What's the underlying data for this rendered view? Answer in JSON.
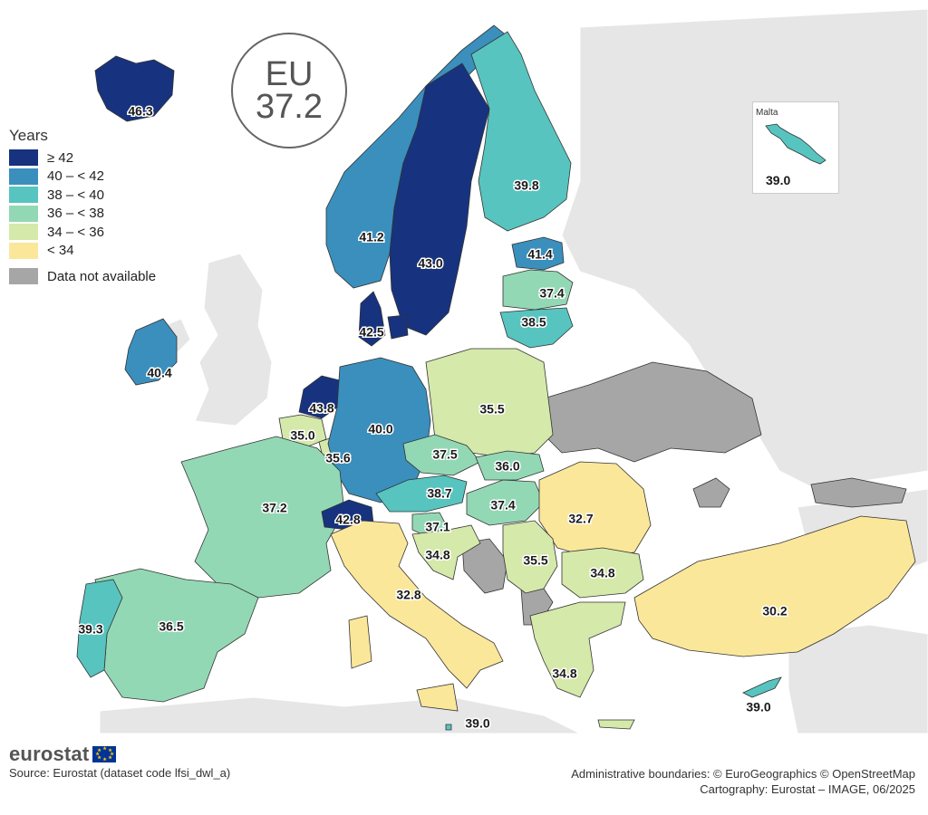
{
  "map": {
    "eu_badge": {
      "label": "EU",
      "value": "37.2"
    },
    "legend": {
      "title": "Years",
      "classes": [
        {
          "label": "≥ 42",
          "color": "#17337f"
        },
        {
          "label": "40 – < 42",
          "color": "#3a8fbd"
        },
        {
          "label": "38 – < 40",
          "color": "#57c4bf"
        },
        {
          "label": "36 – < 38",
          "color": "#93d8b4"
        },
        {
          "label": "34 – < 36",
          "color": "#d5e9aa"
        },
        {
          "label": "< 34",
          "color": "#fbe79a"
        }
      ],
      "not_available": {
        "label": "Data not available",
        "color": "#a6a6a6"
      }
    },
    "background_land_color": "#e6e6e6",
    "values": [
      {
        "region": "iceland",
        "value": "46.3"
      },
      {
        "region": "norway",
        "value": "41.2"
      },
      {
        "region": "sweden",
        "value": "43.0"
      },
      {
        "region": "finland",
        "value": "39.8"
      },
      {
        "region": "estonia",
        "value": "41.4"
      },
      {
        "region": "latvia",
        "value": "37.4"
      },
      {
        "region": "lithuania",
        "value": "38.5"
      },
      {
        "region": "denmark",
        "value": "42.5"
      },
      {
        "region": "ireland",
        "value": "40.4"
      },
      {
        "region": "netherlands",
        "value": "43.8"
      },
      {
        "region": "belgium",
        "value": "35.0"
      },
      {
        "region": "luxembourg",
        "value": "35.6"
      },
      {
        "region": "germany",
        "value": "40.0"
      },
      {
        "region": "poland",
        "value": "35.5"
      },
      {
        "region": "czechia",
        "value": "37.5"
      },
      {
        "region": "slovakia",
        "value": "36.0"
      },
      {
        "region": "austria",
        "value": "38.7"
      },
      {
        "region": "hungary",
        "value": "37.4"
      },
      {
        "region": "romania",
        "value": "32.7"
      },
      {
        "region": "slovenia",
        "value": "37.1"
      },
      {
        "region": "croatia",
        "value": "34.8"
      },
      {
        "region": "serbia",
        "value": "35.5"
      },
      {
        "region": "bulgaria",
        "value": "34.8"
      },
      {
        "region": "france",
        "value": "37.2"
      },
      {
        "region": "switzerland",
        "value": "42.8"
      },
      {
        "region": "italy",
        "value": "32.8"
      },
      {
        "region": "spain",
        "value": "36.5"
      },
      {
        "region": "portugal",
        "value": "39.3"
      },
      {
        "region": "greece",
        "value": "34.8"
      },
      {
        "region": "turkiye",
        "value": "30.2"
      },
      {
        "region": "cyprus",
        "value": "39.0"
      },
      {
        "region": "italy-south",
        "value": "39.0"
      }
    ],
    "malta_inset": {
      "title": "Malta",
      "value": "39.0"
    }
  },
  "footer": {
    "brand": "eurostat",
    "source": "Source: Eurostat (dataset code lfsi_dwl_a)",
    "boundaries": "Administrative boundaries: © EuroGeographics © OpenStreetMap",
    "cartography": "Cartography: Eurostat – IMAGE, 06/2025"
  }
}
